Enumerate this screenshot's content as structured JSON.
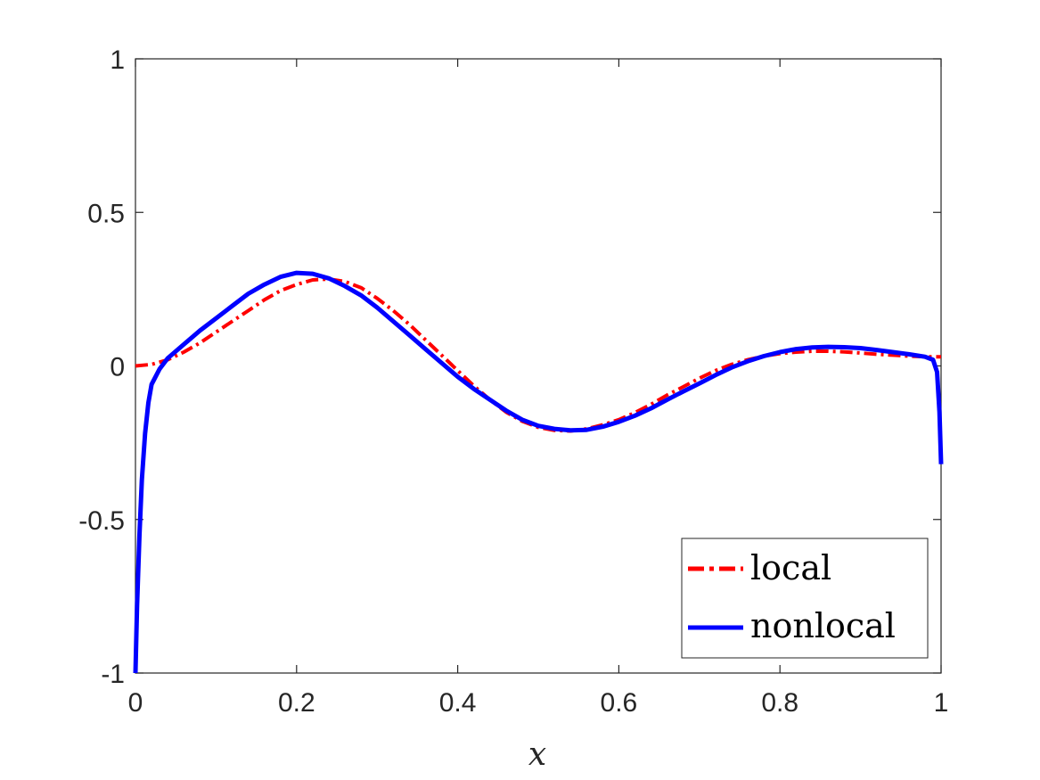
{
  "chart_data": {
    "type": "line",
    "title": "",
    "xlabel": "x",
    "ylabel": "",
    "xlim": [
      0,
      1
    ],
    "ylim": [
      -1,
      1
    ],
    "xticks": [
      0,
      0.2,
      0.4,
      0.6,
      0.8,
      1
    ],
    "xtick_labels": [
      "0",
      "0.2",
      "0.4",
      "0.6",
      "0.8",
      "1"
    ],
    "yticks": [
      -1,
      -0.5,
      0,
      0.5,
      1
    ],
    "ytick_labels": [
      "-1",
      "-0.5",
      "0",
      "0.5",
      "1"
    ],
    "grid": false,
    "legend_position": "bottom-right",
    "series": [
      {
        "name": "local",
        "color": "#ff0000",
        "style": "dash-dot",
        "x": [
          0,
          0.02,
          0.04,
          0.06,
          0.08,
          0.1,
          0.12,
          0.14,
          0.16,
          0.18,
          0.2,
          0.22,
          0.24,
          0.26,
          0.28,
          0.3,
          0.32,
          0.34,
          0.36,
          0.38,
          0.4,
          0.42,
          0.44,
          0.46,
          0.48,
          0.5,
          0.52,
          0.54,
          0.56,
          0.58,
          0.6,
          0.62,
          0.64,
          0.66,
          0.68,
          0.7,
          0.72,
          0.74,
          0.76,
          0.78,
          0.8,
          0.82,
          0.84,
          0.86,
          0.88,
          0.9,
          0.92,
          0.94,
          0.96,
          0.98,
          1.0
        ],
        "y": [
          0,
          0.005,
          0.02,
          0.045,
          0.075,
          0.11,
          0.145,
          0.18,
          0.215,
          0.245,
          0.265,
          0.28,
          0.283,
          0.275,
          0.255,
          0.22,
          0.18,
          0.135,
          0.085,
          0.035,
          -0.015,
          -0.065,
          -0.11,
          -0.15,
          -0.18,
          -0.2,
          -0.21,
          -0.212,
          -0.205,
          -0.192,
          -0.175,
          -0.152,
          -0.125,
          -0.095,
          -0.068,
          -0.04,
          -0.015,
          0.005,
          0.02,
          0.032,
          0.04,
          0.045,
          0.048,
          0.048,
          0.046,
          0.042,
          0.038,
          0.035,
          0.032,
          0.03,
          0.03
        ]
      },
      {
        "name": "nonlocal",
        "color": "#0000ff",
        "style": "solid",
        "x": [
          0,
          0.002,
          0.005,
          0.008,
          0.012,
          0.016,
          0.02,
          0.03,
          0.04,
          0.06,
          0.08,
          0.1,
          0.12,
          0.14,
          0.16,
          0.18,
          0.2,
          0.22,
          0.24,
          0.26,
          0.28,
          0.3,
          0.32,
          0.34,
          0.36,
          0.38,
          0.4,
          0.42,
          0.44,
          0.46,
          0.48,
          0.5,
          0.52,
          0.54,
          0.56,
          0.58,
          0.6,
          0.62,
          0.64,
          0.66,
          0.68,
          0.7,
          0.72,
          0.74,
          0.76,
          0.78,
          0.8,
          0.82,
          0.84,
          0.86,
          0.88,
          0.9,
          0.92,
          0.94,
          0.96,
          0.98,
          0.99,
          0.995,
          0.998,
          1.0
        ],
        "y": [
          -1.0,
          -0.78,
          -0.55,
          -0.37,
          -0.22,
          -0.12,
          -0.06,
          -0.01,
          0.025,
          0.07,
          0.115,
          0.155,
          0.195,
          0.235,
          0.265,
          0.29,
          0.303,
          0.3,
          0.285,
          0.26,
          0.23,
          0.19,
          0.145,
          0.1,
          0.055,
          0.01,
          -0.035,
          -0.075,
          -0.11,
          -0.145,
          -0.175,
          -0.195,
          -0.205,
          -0.21,
          -0.208,
          -0.198,
          -0.182,
          -0.162,
          -0.138,
          -0.11,
          -0.083,
          -0.057,
          -0.03,
          -0.005,
          0.015,
          0.032,
          0.045,
          0.055,
          0.06,
          0.062,
          0.061,
          0.058,
          0.052,
          0.045,
          0.038,
          0.03,
          0.02,
          -0.02,
          -0.15,
          -0.32
        ]
      }
    ]
  }
}
